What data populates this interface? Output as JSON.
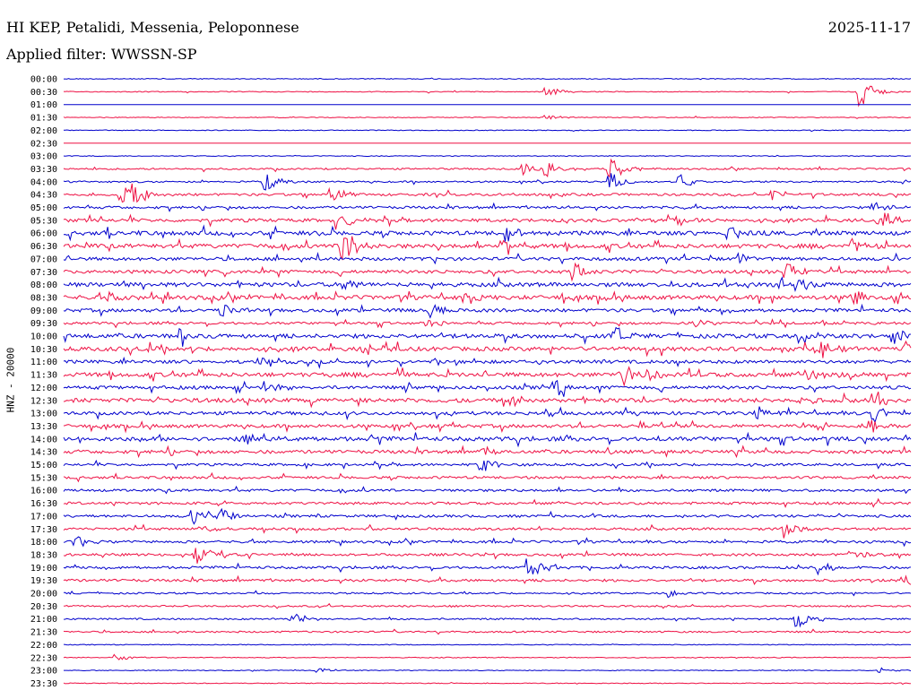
{
  "header": {
    "station": "HI KEP, Petalidi, Messenia, Peloponnese",
    "date": "2025-11-17",
    "filter": "Applied filter: WWSSN-SP"
  },
  "chart_data": {
    "type": "line",
    "title": "HI KEP, Petalidi, Messenia, Peloponnese",
    "subtitle": "Applied filter: WWSSN-SP",
    "ylabel": "HNZ - 20000",
    "xlabel": "",
    "colors": [
      "#0000cc",
      "#ee1144"
    ],
    "rows": [
      "00:00",
      "00:30",
      "01:00",
      "01:30",
      "02:00",
      "02:30",
      "03:00",
      "03:30",
      "04:00",
      "04:30",
      "05:00",
      "05:30",
      "06:00",
      "06:30",
      "07:00",
      "07:30",
      "08:00",
      "08:30",
      "09:00",
      "09:30",
      "10:00",
      "10:30",
      "11:00",
      "11:30",
      "12:00",
      "12:30",
      "13:00",
      "13:30",
      "14:00",
      "14:30",
      "15:00",
      "15:30",
      "16:00",
      "16:30",
      "17:00",
      "17:30",
      "18:00",
      "18:30",
      "19:00",
      "19:30",
      "20:00",
      "20:30",
      "21:00",
      "21:30",
      "22:00",
      "22:30",
      "23:00",
      "23:30"
    ],
    "noise_level": [
      1,
      1,
      0,
      1,
      1,
      0,
      1,
      2,
      2,
      3,
      3,
      4,
      5,
      5,
      4,
      4,
      5,
      5,
      4,
      3,
      5,
      5,
      4,
      5,
      4,
      5,
      4,
      4,
      5,
      4,
      3,
      3,
      3,
      3,
      3,
      3,
      3,
      3,
      3,
      3,
      2,
      2,
      2,
      2,
      1,
      1,
      1,
      1
    ],
    "events": [
      [],
      [
        {
          "t": 0.573,
          "a": 6
        },
        {
          "t": 0.942,
          "a": 16
        }
      ],
      [],
      [
        {
          "t": 0.572,
          "a": 3
        }
      ],
      [],
      [],
      [],
      [
        {
          "t": 0.543,
          "a": 7
        },
        {
          "t": 0.572,
          "a": 9
        },
        {
          "t": 0.648,
          "a": 15
        }
      ],
      [
        {
          "t": 0.24,
          "a": 10
        },
        {
          "t": 0.648,
          "a": 9
        },
        {
          "t": 0.73,
          "a": 8
        }
      ],
      [
        {
          "t": 0.07,
          "a": 12
        },
        {
          "t": 0.085,
          "a": 14
        },
        {
          "t": 0.318,
          "a": 10
        },
        {
          "t": 0.838,
          "a": 6
        }
      ],
      [
        {
          "t": 0.959,
          "a": 8
        }
      ],
      [
        {
          "t": 0.327,
          "a": 10
        },
        {
          "t": 0.723,
          "a": 8
        },
        {
          "t": 0.964,
          "a": 10
        }
      ],
      [
        {
          "t": 0.525,
          "a": 8
        },
        {
          "t": 0.787,
          "a": 8
        }
      ],
      [
        {
          "t": 0.333,
          "a": 18
        },
        {
          "t": 0.518,
          "a": 8
        },
        {
          "t": 0.935,
          "a": 8
        }
      ],
      [
        {
          "t": 0.798,
          "a": 6
        }
      ],
      [
        {
          "t": 0.606,
          "a": 8
        },
        {
          "t": 0.855,
          "a": 10
        }
      ],
      [
        {
          "t": 0.334,
          "a": 6
        },
        {
          "t": 0.843,
          "a": 10
        },
        {
          "t": 0.864,
          "a": 8
        }
      ],
      [
        {
          "t": 0.058,
          "a": 8
        },
        {
          "t": 0.476,
          "a": 9
        },
        {
          "t": 0.935,
          "a": 8
        }
      ],
      [
        {
          "t": 0.189,
          "a": 8
        },
        {
          "t": 0.437,
          "a": 8
        }
      ],
      [
        {
          "t": 0.433,
          "a": 6
        },
        {
          "t": 0.748,
          "a": 5
        }
      ],
      [
        {
          "t": 0.142,
          "a": 9
        },
        {
          "t": 0.656,
          "a": 9
        },
        {
          "t": 0.873,
          "a": 8
        },
        {
          "t": 0.983,
          "a": 8
        }
      ],
      [
        {
          "t": 0.357,
          "a": 8
        },
        {
          "t": 0.897,
          "a": 9
        },
        {
          "t": 0.996,
          "a": 11
        }
      ],
      [
        {
          "t": 0.232,
          "a": 5
        }
      ],
      [
        {
          "t": 0.662,
          "a": 13
        },
        {
          "t": 0.693,
          "a": 8
        },
        {
          "t": 0.877,
          "a": 8
        }
      ],
      [
        {
          "t": 0.242,
          "a": 7
        },
        {
          "t": 0.582,
          "a": 10
        }
      ],
      [
        {
          "t": 0.53,
          "a": 8
        },
        {
          "t": 0.867,
          "a": 8
        },
        {
          "t": 0.96,
          "a": 10
        }
      ],
      [
        {
          "t": 0.82,
          "a": 7
        },
        {
          "t": 0.96,
          "a": 12
        }
      ],
      [
        {
          "t": 0.953,
          "a": 8
        }
      ],
      [
        {
          "t": 0.213,
          "a": 10
        }
      ],
      [
        {
          "t": 0.497,
          "a": 6
        }
      ],
      [
        {
          "t": 0.495,
          "a": 9
        }
      ],
      [],
      [],
      [],
      [
        {
          "t": 0.155,
          "a": 8
        },
        {
          "t": 0.187,
          "a": 9
        }
      ],
      [
        {
          "t": 0.164,
          "a": 6
        },
        {
          "t": 0.853,
          "a": 10
        }
      ],
      [
        {
          "t": 0.014,
          "a": 9
        }
      ],
      [
        {
          "t": 0.16,
          "a": 10
        },
        {
          "t": 0.933,
          "a": 6
        }
      ],
      [
        {
          "t": 0.551,
          "a": 12
        },
        {
          "t": 0.894,
          "a": 7
        }
      ],
      [
        {
          "t": 0.995,
          "a": 6
        }
      ],
      [
        {
          "t": 0.716,
          "a": 5
        }
      ],
      [],
      [
        {
          "t": 0.27,
          "a": 10
        },
        {
          "t": 0.866,
          "a": 12
        }
      ],
      [],
      [],
      [
        {
          "t": 0.065,
          "a": 4
        }
      ],
      [
        {
          "t": 0.302,
          "a": 3
        },
        {
          "t": 0.966,
          "a": 3
        }
      ],
      []
    ]
  }
}
